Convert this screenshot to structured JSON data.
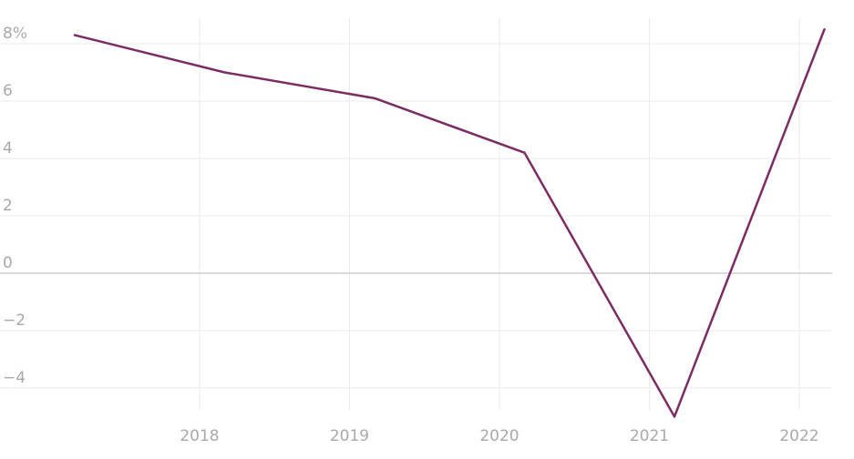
{
  "chart_data": {
    "type": "line",
    "x": [
      "2017-Q1",
      "2018-Q1",
      "2019-Q1",
      "2020-Q1",
      "2021-Q1",
      "2022-Q1"
    ],
    "series": [
      {
        "values": [
          8.3,
          7.0,
          6.1,
          4.2,
          -5.0,
          8.5
        ],
        "color": "#7b2d63"
      }
    ],
    "yticks": [
      {
        "value": 8,
        "label": "8%"
      },
      {
        "value": 6,
        "label": "6"
      },
      {
        "value": 4,
        "label": "4"
      },
      {
        "value": 2,
        "label": "2"
      },
      {
        "value": 0,
        "label": "0"
      },
      {
        "value": -2,
        "label": "−2"
      },
      {
        "value": -4,
        "label": "−4"
      }
    ],
    "xticks": [
      "2018",
      "2019",
      "2020",
      "2021",
      "2022"
    ],
    "ylim": [
      -5,
      8.5
    ],
    "grid": true,
    "zero_line": true,
    "colors": {
      "line": "#7b2d63",
      "grid": "#ebebeb",
      "zero_line": "#b5b5b5",
      "tick_text": "#a9a9a9"
    }
  }
}
